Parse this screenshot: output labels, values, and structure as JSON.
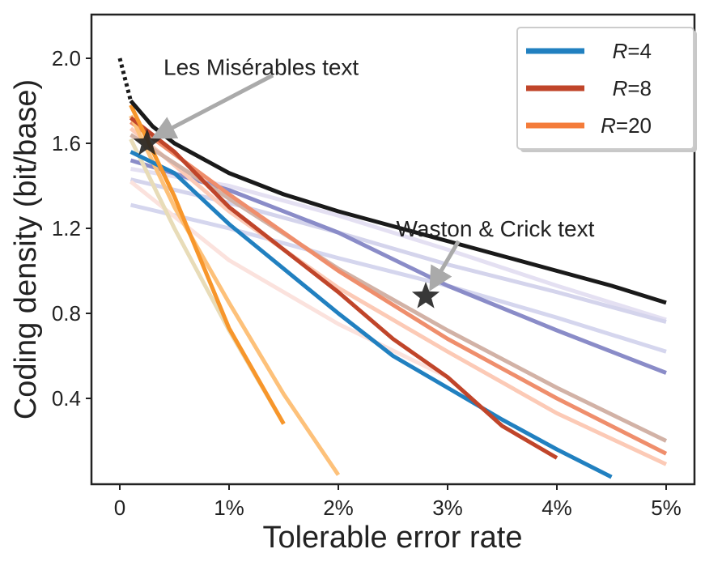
{
  "chart_data": {
    "type": "line",
    "xlabel": "Tolerable error rate",
    "ylabel": "Coding density (bit/base)",
    "xlim": [
      -0.25,
      5.25
    ],
    "ylim": [
      0.0,
      2.2
    ],
    "xticks": [
      {
        "v": 0,
        "label": "0"
      },
      {
        "v": 1,
        "label": "1%"
      },
      {
        "v": 2,
        "label": "2%"
      },
      {
        "v": 3,
        "label": "3%"
      },
      {
        "v": 4,
        "label": "4%"
      },
      {
        "v": 5,
        "label": "5%"
      }
    ],
    "yticks": [
      {
        "v": 0.4,
        "label": "0.4"
      },
      {
        "v": 0.8,
        "label": "0.8"
      },
      {
        "v": 1.2,
        "label": "1.2"
      },
      {
        "v": 1.6,
        "label": "1.6"
      },
      {
        "v": 2.0,
        "label": "2.0"
      }
    ],
    "legend": {
      "placement": "top-right",
      "entries": [
        {
          "prefix": "R",
          "label": "=4",
          "color": "#2180c0"
        },
        {
          "prefix": "R",
          "label": "=8",
          "color": "#c0452a"
        },
        {
          "prefix": "R",
          "label": "=20",
          "color": "#f47c3a"
        }
      ]
    },
    "series": [
      {
        "name": "bound-dotted",
        "color": "#1a1a1a",
        "opacity": 1,
        "dash": true,
        "x": [
          0,
          0.1
        ],
        "y": [
          2.0,
          1.8
        ]
      },
      {
        "name": "very-light-purple-a",
        "color": "#e4e0f2",
        "opacity": 1,
        "x": [
          0.1,
          1,
          2,
          3,
          4,
          5
        ],
        "y": [
          1.48,
          1.4,
          1.26,
          1.1,
          0.93,
          0.77
        ]
      },
      {
        "name": "very-light-purple-b",
        "color": "#d4d4ec",
        "opacity": 1,
        "x": [
          0.1,
          1,
          2,
          3,
          4,
          5
        ],
        "y": [
          1.43,
          1.32,
          1.18,
          1.03,
          0.9,
          0.76
        ]
      },
      {
        "name": "light-purple",
        "color": "#d5d6ee",
        "opacity": 1,
        "x": [
          0.1,
          1,
          2,
          3,
          4,
          5
        ],
        "y": [
          1.31,
          1.2,
          1.06,
          0.93,
          0.78,
          0.62
        ]
      },
      {
        "name": "purple",
        "color": "#8a8cc8",
        "opacity": 1,
        "x": [
          0.1,
          1,
          2,
          3,
          4,
          5
        ],
        "y": [
          1.52,
          1.38,
          1.18,
          0.93,
          0.72,
          0.52
        ]
      },
      {
        "name": "very-light-pink",
        "color": "#fbe2dd",
        "opacity": 1,
        "x": [
          0.1,
          1,
          2,
          3
        ],
        "y": [
          1.42,
          1.05,
          0.75,
          0.5
        ]
      },
      {
        "name": "light-salmon",
        "color": "#fccab6",
        "opacity": 1,
        "x": [
          0.1,
          1,
          2,
          3,
          4,
          5
        ],
        "y": [
          1.67,
          1.28,
          0.92,
          0.62,
          0.33,
          0.09
        ]
      },
      {
        "name": "tan",
        "color": "#d2b2a6",
        "opacity": 1,
        "x": [
          0.1,
          1,
          2,
          3,
          4,
          5
        ],
        "y": [
          1.64,
          1.34,
          1.01,
          0.72,
          0.45,
          0.2
        ]
      },
      {
        "name": "salmon",
        "color": "#ef8e6c",
        "opacity": 1,
        "x": [
          0.1,
          1,
          2,
          3,
          4,
          5
        ],
        "y": [
          1.7,
          1.36,
          1.0,
          0.68,
          0.4,
          0.14
        ]
      },
      {
        "name": "beige",
        "color": "#e8dcb8",
        "opacity": 1,
        "x": [
          0.1,
          0.5,
          1,
          1.5
        ],
        "y": [
          1.62,
          1.2,
          0.72,
          0.28
        ]
      },
      {
        "name": "light-orange",
        "color": "#fdc17a",
        "opacity": 1,
        "x": [
          0.1,
          0.5,
          1,
          1.5,
          2
        ],
        "y": [
          1.73,
          1.3,
          0.85,
          0.42,
          0.04
        ]
      },
      {
        "name": "R=4",
        "color": "#2180c0",
        "opacity": 1,
        "x": [
          0.1,
          0.5,
          1,
          2,
          2.5,
          3,
          3.5,
          4,
          4.5
        ],
        "y": [
          1.56,
          1.46,
          1.22,
          0.8,
          0.6,
          0.45,
          0.3,
          0.16,
          0.03
        ]
      },
      {
        "name": "R=8",
        "color": "#c0452a",
        "opacity": 1,
        "x": [
          0.1,
          0.5,
          1,
          2,
          2.5,
          3,
          3.5,
          4
        ],
        "y": [
          1.72,
          1.56,
          1.3,
          0.9,
          0.68,
          0.5,
          0.27,
          0.12
        ]
      },
      {
        "name": "R=20",
        "color": "#f7962b",
        "opacity": 1,
        "x": [
          0.1,
          0.5,
          1,
          1.5
        ],
        "y": [
          1.78,
          1.35,
          0.73,
          0.28
        ]
      },
      {
        "name": "bound",
        "color": "#1a1a1a",
        "opacity": 1,
        "x": [
          0.1,
          0.3,
          0.5,
          1,
          1.5,
          2,
          2.5,
          3,
          3.5,
          4,
          4.5,
          5
        ],
        "y": [
          1.8,
          1.68,
          1.6,
          1.46,
          1.36,
          1.28,
          1.21,
          1.14,
          1.07,
          1.0,
          0.93,
          0.85
        ]
      }
    ],
    "markers": [
      {
        "name": "les-miserables",
        "x": 0.25,
        "y": 1.6
      },
      {
        "name": "watson-crick",
        "x": 2.8,
        "y": 0.88
      }
    ],
    "annotations": [
      {
        "text": "Les Misérables text",
        "tx": 0.4,
        "ty": 1.96,
        "ax": 1.4,
        "ay": 1.92,
        "hx": 0.32,
        "hy": 1.63
      },
      {
        "text": "Waston & Crick text",
        "tx": 2.53,
        "ty": 1.2,
        "ax": 3.1,
        "ay": 1.14,
        "hx": 2.85,
        "hy": 0.92
      }
    ]
  }
}
